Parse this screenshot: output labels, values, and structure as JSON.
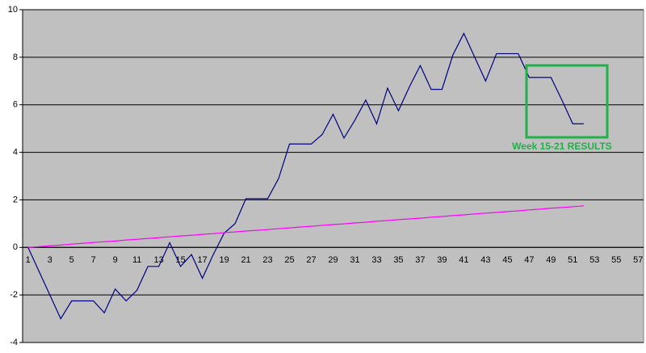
{
  "chart_data": {
    "type": "line",
    "categories": [
      1,
      null,
      3,
      null,
      5,
      null,
      7,
      null,
      9,
      null,
      11,
      null,
      13,
      null,
      15,
      null,
      17,
      null,
      19,
      null,
      21,
      null,
      23,
      null,
      25,
      null,
      27,
      null,
      29,
      null,
      31,
      null,
      33,
      null,
      35,
      null,
      37,
      null,
      39,
      null,
      41,
      null,
      43,
      null,
      45,
      null,
      47,
      null,
      49,
      null,
      51,
      null,
      53,
      null,
      55,
      null,
      57
    ],
    "series": [
      {
        "color": "#000080",
        "values": [
          0,
          -1,
          -2,
          -3,
          -2.25,
          -2.25,
          -2.25,
          -2.75,
          -1.75,
          -2.25,
          -1.8,
          -0.8,
          -0.8,
          0.2,
          -0.8,
          -0.3,
          -1.3,
          -0.3,
          0.6,
          1,
          2.05,
          2.05,
          2.05,
          2.9,
          4.35,
          4.35,
          4.35,
          4.75,
          5.6,
          4.6,
          5.35,
          6.2,
          5.2,
          6.7,
          5.75,
          6.75,
          7.65,
          6.65,
          6.65,
          8.1,
          9,
          8,
          7,
          8.15,
          8.15,
          8.15,
          7.15,
          7.15,
          7.15,
          6.2,
          5.2,
          5.2,
          null,
          null,
          null,
          null,
          null
        ]
      },
      {
        "color": "#ff00ff",
        "values": [
          0,
          0.03,
          0.07,
          0.1,
          0.14,
          0.17,
          0.21,
          0.24,
          0.27,
          0.31,
          0.34,
          0.38,
          0.41,
          0.45,
          0.48,
          0.51,
          0.55,
          0.58,
          0.62,
          0.65,
          0.69,
          0.72,
          0.75,
          0.79,
          0.82,
          0.86,
          0.89,
          0.93,
          0.96,
          0.99,
          1.03,
          1.06,
          1.1,
          1.13,
          1.17,
          1.2,
          1.23,
          1.27,
          1.3,
          1.34,
          1.37,
          1.41,
          1.44,
          1.47,
          1.51,
          1.54,
          1.58,
          1.61,
          1.65,
          1.68,
          1.71,
          1.75,
          null,
          null,
          null,
          null,
          null
        ]
      }
    ],
    "ylim": [
      -4,
      10
    ],
    "yticks": [
      -4,
      -2,
      0,
      2,
      4,
      6,
      8,
      10
    ],
    "grid": true,
    "annotation": "Week 15-21 RESULTS"
  }
}
